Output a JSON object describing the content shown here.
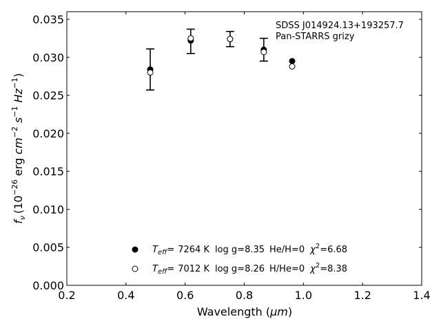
{
  "chart_data": {
    "type": "scatter",
    "xlabel": "Wavelength (",
    "xlabel_unit": "μm",
    "xlabel_close": ")",
    "ylabel_parts": {
      "f": "f",
      "nu": "ν",
      "ten": "(10",
      "exp26": "−26",
      "erg": " erg ",
      "cm": "cm",
      "exp2": "−2",
      "s": " s",
      "exp1a": "−1",
      "hz": " Hz",
      "exp1b": "−1",
      "close": ")"
    },
    "xlim": [
      0.2,
      1.4
    ],
    "ylim": [
      0.0,
      0.036
    ],
    "x_ticks": [
      "0.2",
      "0.4",
      "0.6",
      "0.8",
      "1.0",
      "1.2",
      "1.4"
    ],
    "y_ticks": [
      "0.000",
      "0.005",
      "0.010",
      "0.015",
      "0.020",
      "0.025",
      "0.030",
      "0.035"
    ],
    "annotation": [
      "SDSS J014924.13+193257.7",
      "Pan-STARRS grizy"
    ],
    "observed": {
      "x": [
        0.482,
        0.619,
        0.752,
        0.866,
        0.962
      ],
      "y": [
        0.0284,
        0.0321,
        0.0324,
        0.031,
        0.0295
      ],
      "err": [
        0.0027,
        0.0016,
        0.001,
        0.0015,
        0.0
      ]
    },
    "series": [
      {
        "name": "He/H=0",
        "marker": "filled",
        "teff": "7264 K",
        "logg": "log g=8.35",
        "comp": "He/H=0",
        "chi": "=6.68",
        "x": [
          0.482,
          0.619,
          0.752,
          0.866,
          0.962
        ],
        "y": [
          0.0284,
          0.0322,
          0.0324,
          0.031,
          0.0295
        ]
      },
      {
        "name": "H/He=0",
        "marker": "open",
        "teff": "7012 K",
        "logg": "log g=8.26",
        "comp": "H/He=0",
        "chi": "=8.38",
        "x": [
          0.482,
          0.619,
          0.752,
          0.866,
          0.962
        ],
        "y": [
          0.028,
          0.0325,
          0.0324,
          0.0307,
          0.0288
        ]
      }
    ],
    "legend_labels": {
      "T": "T",
      "eff": "eff",
      "eq": "=",
      "chi_sym": "χ",
      "two": "2"
    },
    "legend_position": "lower-center",
    "grid": false
  }
}
